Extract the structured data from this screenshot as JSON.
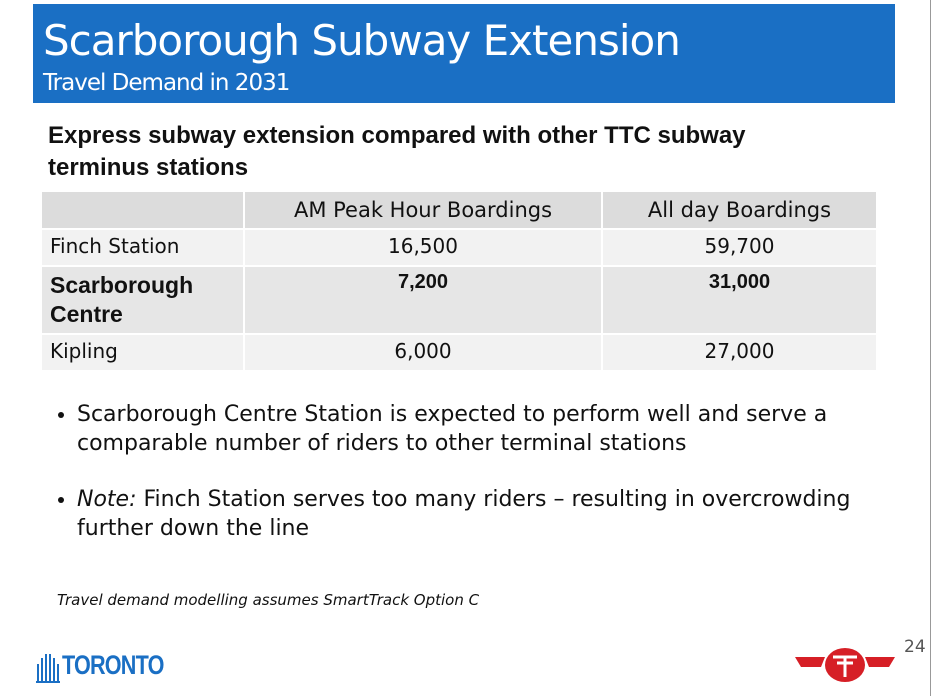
{
  "header": {
    "title": "Scarborough Subway Extension",
    "subtitle": "Travel Demand in 2031"
  },
  "heading": "Express subway extension compared with other TTC subway terminus stations",
  "table": {
    "columns": [
      "AM Peak Hour Boardings",
      "All day Boardings"
    ],
    "rows": [
      [
        "Finch Station",
        "16,500",
        "59,700"
      ],
      [
        "Scarborough Centre",
        "7,200",
        "31,000"
      ],
      [
        "Kipling",
        "6,000",
        "27,000"
      ]
    ]
  },
  "bullets": [
    {
      "text": "Scarborough Centre Station is expected to perform well and serve a comparable number of riders to other terminal stations"
    },
    {
      "emphasis": "Note:",
      "text": "Finch Station serves too many riders – resulting in overcrowding further down the line"
    }
  ],
  "footnote": "Travel demand modelling assumes SmartTrack Option C",
  "page_number": "24",
  "logo": "TORONTO"
}
